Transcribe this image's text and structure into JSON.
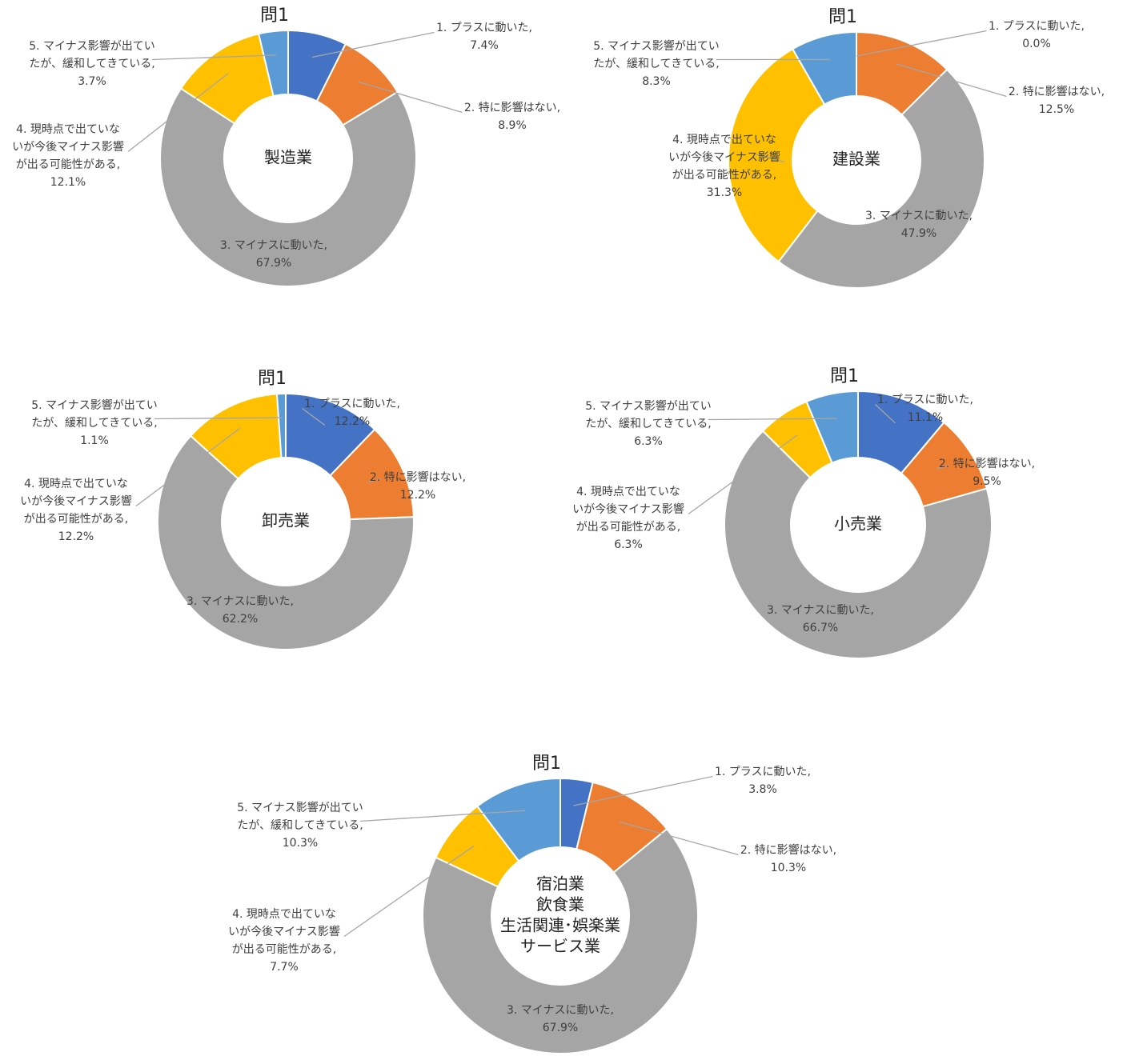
{
  "chart_data": [
    {
      "type": "donut",
      "title": "問1",
      "center_label": [
        "製造業"
      ],
      "categories": [
        "1. プラスに動いた,",
        "2. 特に影響はない,",
        "3. マイナスに動いた,",
        "4. 現時点で出ていな\nいが今後マイナス影響\nが出る可能性がある,",
        "5. マイナス影響が出てい\nたが、緩和してきている,"
      ],
      "values": [
        7.4,
        8.9,
        67.9,
        12.1,
        3.7
      ],
      "value_labels": [
        "7.4%",
        "8.9%",
        "67.9%",
        "12.1%",
        "3.7%"
      ],
      "colors": [
        "#4472c4",
        "#ed7d31",
        "#a5a5a5",
        "#ffc000",
        "#5b9bd5"
      ]
    },
    {
      "type": "donut",
      "title": "問1",
      "center_label": [
        "建設業"
      ],
      "categories": [
        "1. プラスに動いた,",
        "2. 特に影響はない,",
        "3. マイナスに動いた,",
        "4. 現時点で出ていな\nいが今後マイナス影響\nが出る可能性がある,",
        "5. マイナス影響が出てい\nたが、緩和してきている,"
      ],
      "values": [
        0.0,
        12.5,
        47.9,
        31.3,
        8.3
      ],
      "value_labels": [
        "0.0%",
        "12.5%",
        "47.9%",
        "31.3%",
        "8.3%"
      ],
      "colors": [
        "#4472c4",
        "#ed7d31",
        "#a5a5a5",
        "#ffc000",
        "#5b9bd5"
      ]
    },
    {
      "type": "donut",
      "title": "問1",
      "center_label": [
        "卸売業"
      ],
      "categories": [
        "1. プラスに動いた,",
        "2. 特に影響はない,",
        "3. マイナスに動いた,",
        "4. 現時点で出ていな\nいが今後マイナス影響\nが出る可能性がある,",
        "5. マイナス影響が出てい\nたが、緩和してきている,"
      ],
      "values": [
        12.2,
        12.2,
        62.2,
        12.2,
        1.1
      ],
      "value_labels": [
        "12.2%",
        "12.2%",
        "62.2%",
        "12.2%",
        "1.1%"
      ],
      "colors": [
        "#4472c4",
        "#ed7d31",
        "#a5a5a5",
        "#ffc000",
        "#5b9bd5"
      ]
    },
    {
      "type": "donut",
      "title": "問1",
      "center_label": [
        "小売業"
      ],
      "categories": [
        "1. プラスに動いた,",
        "2. 特に影響はない,",
        "3. マイナスに動いた,",
        "4. 現時点で出ていな\nいが今後マイナス影響\nが出る可能性がある,",
        "5. マイナス影響が出てい\nたが、緩和してきている,"
      ],
      "values": [
        11.1,
        9.5,
        66.7,
        6.3,
        6.3
      ],
      "value_labels": [
        "11.1%",
        "9.5%",
        "66.7%",
        "6.3%",
        "6.3%"
      ],
      "colors": [
        "#4472c4",
        "#ed7d31",
        "#a5a5a5",
        "#ffc000",
        "#5b9bd5"
      ]
    },
    {
      "type": "donut",
      "title": "問1",
      "center_label": [
        "宿泊業",
        "飲食業",
        "生活関連･娯楽業",
        "サービス業"
      ],
      "categories": [
        "1. プラスに動いた,",
        "2. 特に影響はない,",
        "3. マイナスに動いた,",
        "4. 現時点で出ていな\nいが今後マイナス影響\nが出る可能性がある,",
        "5. マイナス影響が出てい\nたが、緩和してきている,"
      ],
      "values": [
        3.8,
        10.3,
        67.9,
        7.7,
        10.3
      ],
      "value_labels": [
        "3.8%",
        "10.3%",
        "67.9%",
        "7.7%",
        "10.3%"
      ],
      "colors": [
        "#4472c4",
        "#ed7d31",
        "#a5a5a5",
        "#ffc000",
        "#5b9bd5"
      ]
    }
  ]
}
